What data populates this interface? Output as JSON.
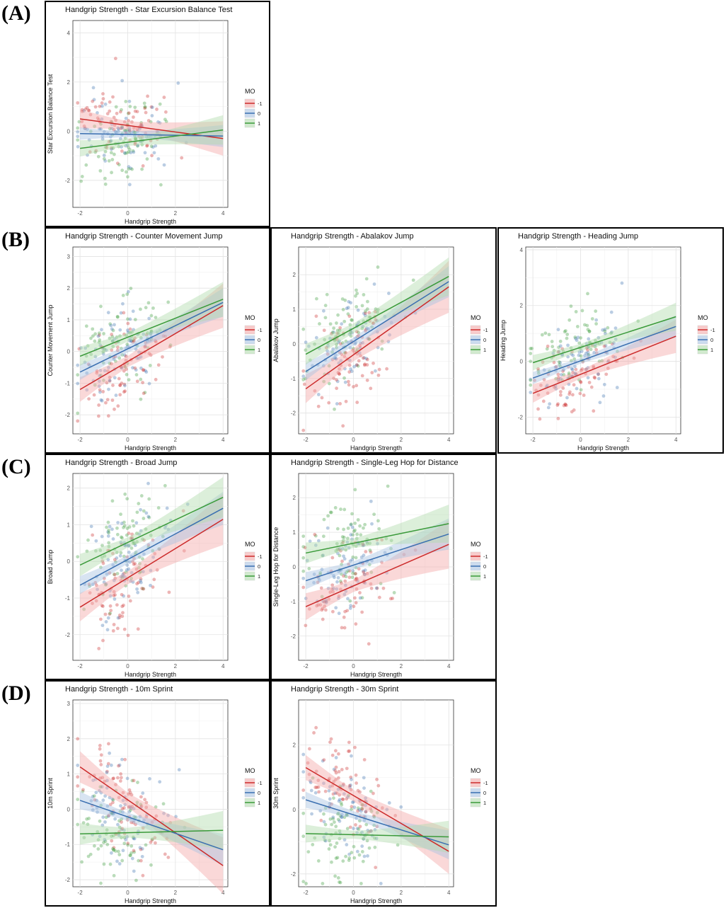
{
  "section_labels": [
    "(A)",
    "(B)",
    "(C)",
    "(D)"
  ],
  "legend_title": "MO",
  "legend_levels": [
    "-1",
    "0",
    "1"
  ],
  "colors": {
    "m1": "#cc2b2b",
    "m0": "#3a6fb0",
    "p1": "#3a9a3a",
    "m1_fill": "#f4a9a9",
    "m0_fill": "#a9c3e3",
    "p1_fill": "#b2dcae"
  },
  "chart_data": [
    {
      "id": "A1",
      "type": "scatter",
      "title": "Handgrip Strength - Star Excursion Balance Test",
      "xlabel": "Handgrip Strength",
      "ylabel": "Star Excursion Balance Test",
      "xlim": [
        -2.3,
        4.2
      ],
      "ylim": [
        -3.1,
        4.5
      ],
      "xticks": [
        -2,
        0,
        2,
        4
      ],
      "yticks": [
        -2,
        0,
        2,
        4
      ],
      "series": [
        {
          "name": "-1",
          "start": 0.5,
          "end": -0.3,
          "band": 0.7
        },
        {
          "name": "0",
          "start": -0.1,
          "end": -0.2,
          "band": 0.45
        },
        {
          "name": "1",
          "start": -0.7,
          "end": 0.05,
          "band": 0.6
        }
      ],
      "points": {
        "x_center": -0.2,
        "x_spread": 1.5,
        "y_spread": 1.0
      }
    },
    {
      "id": "B1",
      "type": "scatter",
      "title": "Handgrip Strength - Counter Movement Jump",
      "xlabel": "Handgrip Strength",
      "ylabel": "Counter Movement Jump",
      "xlim": [
        -2.3,
        4.2
      ],
      "ylim": [
        -2.6,
        3.3
      ],
      "xticks": [
        -2,
        0,
        2,
        4
      ],
      "yticks": [
        -2,
        -1,
        0,
        1,
        2,
        3
      ],
      "series": [
        {
          "name": "-1",
          "start": -1.2,
          "end": 1.45,
          "band": 0.7
        },
        {
          "name": "0",
          "start": -0.65,
          "end": 1.55,
          "band": 0.45
        },
        {
          "name": "1",
          "start": -0.15,
          "end": 1.65,
          "band": 0.55
        }
      ],
      "points": {
        "x_center": -0.2,
        "x_spread": 1.3,
        "y_spread": 0.9
      }
    },
    {
      "id": "B2",
      "type": "scatter",
      "title": "Handgrip Strength - Abalakov Jump",
      "xlabel": "Handgrip Strength",
      "ylabel": "Abalakov Jump",
      "xlim": [
        -2.3,
        4.2
      ],
      "ylim": [
        -2.6,
        2.8
      ],
      "xticks": [
        -2,
        0,
        2,
        4
      ],
      "yticks": [
        -2,
        -1,
        0,
        1,
        2
      ],
      "series": [
        {
          "name": "-1",
          "start": -1.3,
          "end": 1.65,
          "band": 0.75
        },
        {
          "name": "0",
          "start": -0.8,
          "end": 1.8,
          "band": 0.45
        },
        {
          "name": "1",
          "start": -0.3,
          "end": 1.95,
          "band": 0.55
        }
      ],
      "points": {
        "x_center": -0.2,
        "x_spread": 1.3,
        "y_spread": 0.8
      }
    },
    {
      "id": "B3",
      "type": "scatter",
      "title": "Handgrip Strength - Heading Jump",
      "xlabel": "Handgrip Strength",
      "ylabel": "Heading Jump",
      "xlim": [
        -2.3,
        4.2
      ],
      "ylim": [
        -2.6,
        4.1
      ],
      "xticks": [
        -2,
        0,
        2,
        4
      ],
      "yticks": [
        -2,
        0,
        2,
        4
      ],
      "series": [
        {
          "name": "-1",
          "start": -1.15,
          "end": 0.9,
          "band": 0.6
        },
        {
          "name": "0",
          "start": -0.6,
          "end": 1.25,
          "band": 0.4
        },
        {
          "name": "1",
          "start": -0.05,
          "end": 1.6,
          "band": 0.5
        }
      ],
      "points": {
        "x_center": -0.2,
        "x_spread": 1.3,
        "y_spread": 0.8
      }
    },
    {
      "id": "C1",
      "type": "scatter",
      "title": "Handgrip Strength - Broad Jump",
      "xlabel": "Handgrip Strength",
      "ylabel": "Broad Jump",
      "xlim": [
        -2.3,
        4.2
      ],
      "ylim": [
        -2.7,
        2.4
      ],
      "xticks": [
        -2,
        0,
        2,
        4
      ],
      "yticks": [
        -2,
        -1,
        0,
        1,
        2
      ],
      "series": [
        {
          "name": "-1",
          "start": -1.25,
          "end": 1.15,
          "band": 0.7
        },
        {
          "name": "0",
          "start": -0.65,
          "end": 1.45,
          "band": 0.45
        },
        {
          "name": "1",
          "start": -0.1,
          "end": 1.75,
          "band": 0.55
        }
      ],
      "points": {
        "x_center": -0.2,
        "x_spread": 1.3,
        "y_spread": 0.85
      }
    },
    {
      "id": "C2",
      "type": "scatter",
      "title": "Handgrip Strength - Single-Leg Hop for Distance",
      "xlabel": "Handgrip Strength",
      "ylabel": "Single-Leg Hop for Distance",
      "xlim": [
        -2.3,
        4.2
      ],
      "ylim": [
        -2.7,
        2.7
      ],
      "xticks": [
        -2,
        0,
        2,
        4
      ],
      "yticks": [
        -2,
        -1,
        0,
        1,
        2
      ],
      "series": [
        {
          "name": "-1",
          "start": -1.15,
          "end": 0.65,
          "band": 0.7
        },
        {
          "name": "0",
          "start": -0.4,
          "end": 0.95,
          "band": 0.45
        },
        {
          "name": "1",
          "start": 0.4,
          "end": 1.25,
          "band": 0.55
        }
      ],
      "points": {
        "x_center": -0.2,
        "x_spread": 1.3,
        "y_spread": 0.85
      }
    },
    {
      "id": "D1",
      "type": "scatter",
      "title": "Handgrip Strength - 10m Sprint",
      "xlabel": "Handgrip Strength",
      "ylabel": "10m Sprint",
      "xlim": [
        -2.3,
        4.2
      ],
      "ylim": [
        -2.2,
        3.1
      ],
      "xticks": [
        -2,
        0,
        2,
        4
      ],
      "yticks": [
        -2,
        -1,
        0,
        1,
        2,
        3
      ],
      "series": [
        {
          "name": "-1",
          "start": 1.2,
          "end": -1.6,
          "band": 0.8
        },
        {
          "name": "0",
          "start": 0.25,
          "end": -1.15,
          "band": 0.45
        },
        {
          "name": "1",
          "start": -0.7,
          "end": -0.6,
          "band": 0.55
        }
      ],
      "points": {
        "x_center": -0.3,
        "x_spread": 1.3,
        "y_spread": 0.9
      }
    },
    {
      "id": "D2",
      "type": "scatter",
      "title": "Handgrip Strength - 30m Sprint",
      "xlabel": "Handgrip Strength",
      "ylabel": "30m Sprint",
      "xlim": [
        -2.3,
        4.2
      ],
      "ylim": [
        -2.4,
        3.4
      ],
      "xticks": [
        -2,
        0,
        2,
        4
      ],
      "yticks": [
        -2,
        0,
        2
      ],
      "series": [
        {
          "name": "-1",
          "start": 1.3,
          "end": -1.3,
          "band": 0.7
        },
        {
          "name": "0",
          "start": 0.3,
          "end": -1.1,
          "band": 0.45
        },
        {
          "name": "1",
          "start": -0.75,
          "end": -0.85,
          "band": 0.5
        }
      ],
      "points": {
        "x_center": -0.3,
        "x_spread": 1.3,
        "y_spread": 0.9
      }
    }
  ]
}
